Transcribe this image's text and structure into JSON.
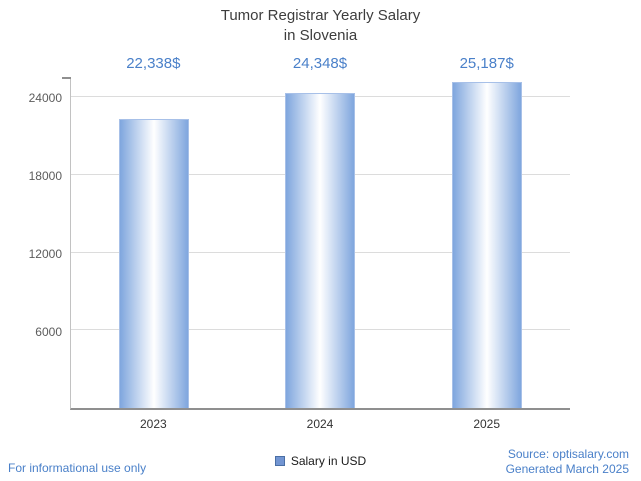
{
  "title": {
    "line1": "Tumor Registrar Yearly Salary",
    "line2": "in Slovenia"
  },
  "chart_data": {
    "type": "bar",
    "title": "Tumor Registrar Yearly Salary in Slovenia",
    "categories": [
      "2023",
      "2024",
      "2025"
    ],
    "values": [
      22338,
      24348,
      25187
    ],
    "value_labels": [
      "22,338$",
      "24,348$",
      "25,187$"
    ],
    "series_name": "Salary in USD",
    "yticks": [
      6000,
      12000,
      18000,
      24000
    ],
    "ylim": [
      0,
      25500
    ],
    "xlabel": "",
    "ylabel": "",
    "grid": true,
    "legend_position": "bottom-center"
  },
  "legend": {
    "label": "Salary in USD",
    "swatch_color": "#7295d2"
  },
  "footer": {
    "disclaimer": "For informational use only",
    "source": "Source: optisalary.com",
    "generated": "Generated March 2025"
  },
  "colors": {
    "accent_text": "#4a80c9",
    "bar_edge": "#7fa6de",
    "grid": "#dcdcdc",
    "axis": "#8f8f8f"
  }
}
